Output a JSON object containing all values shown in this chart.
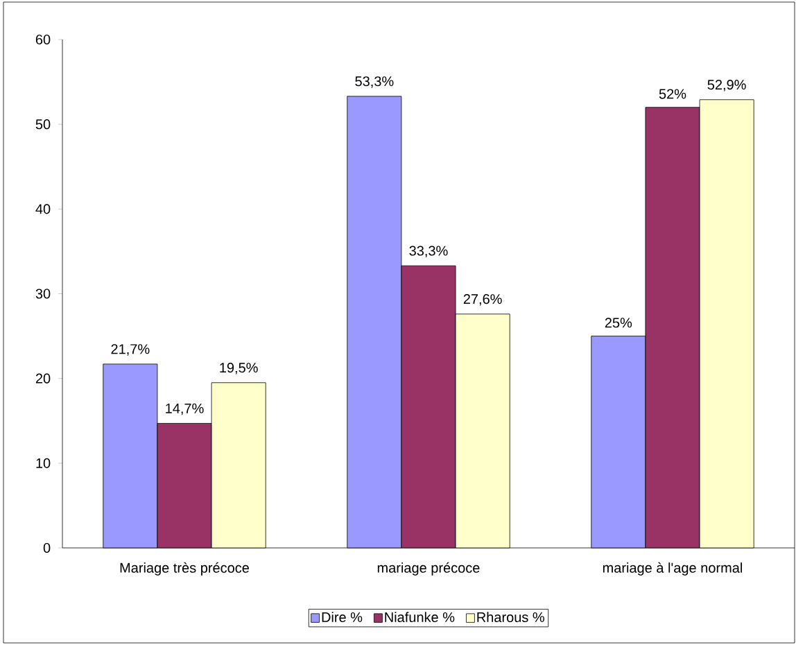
{
  "chart_data": {
    "type": "bar",
    "categories": [
      "Mariage très précoce",
      "mariage précoce",
      "mariage à l'age normal"
    ],
    "series": [
      {
        "name": "Dire %",
        "color": "#9999ff",
        "values": [
          21.7,
          53.3,
          25
        ],
        "value_labels": [
          "21,7%",
          "53,3%",
          "25%"
        ]
      },
      {
        "name": "Niafunke %",
        "color": "#993366",
        "values": [
          14.7,
          33.3,
          52
        ],
        "value_labels": [
          "14,7%",
          "33,3%",
          "52%"
        ]
      },
      {
        "name": "Rharous %",
        "color": "#ffffcc",
        "values": [
          19.5,
          27.6,
          52.9
        ],
        "value_labels": [
          "19,5%",
          "27,6%",
          "52,9%"
        ]
      }
    ],
    "ylim": [
      0,
      60
    ],
    "yticks": [
      0,
      10,
      20,
      30,
      40,
      50,
      60
    ],
    "grid": false,
    "legend": "bottom"
  }
}
